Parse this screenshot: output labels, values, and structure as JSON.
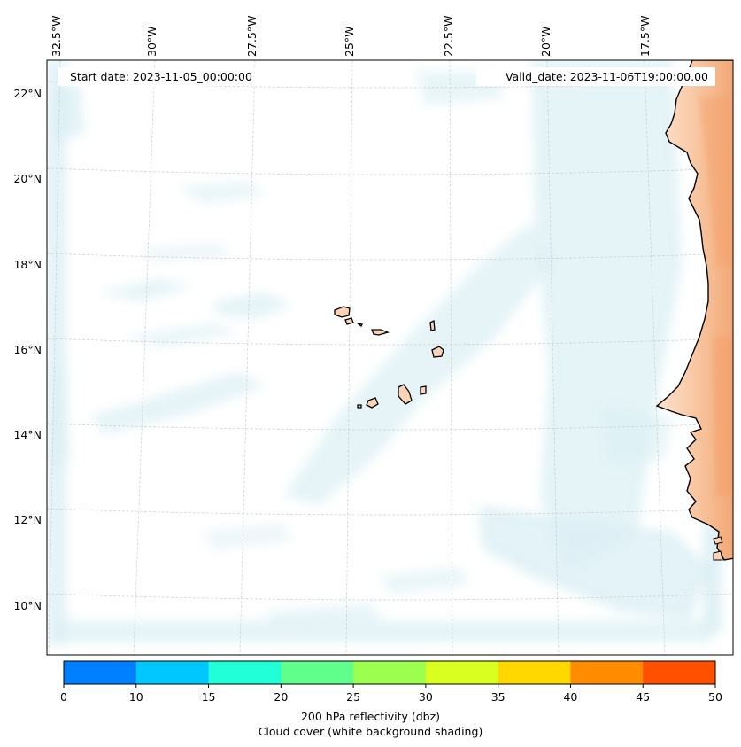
{
  "map": {
    "start_date_label": "Start date: 2023-11-05_00:00:00",
    "valid_date_label": "Valid_date: 2023-11-06T19:00:00.00",
    "lon_labels": [
      "32.5°W",
      "30°W",
      "27.5°W",
      "25°W",
      "22.5°W",
      "20°W",
      "17.5°W"
    ],
    "lat_labels": [
      "22°N",
      "20°N",
      "18°N",
      "16°N",
      "14°N",
      "12°N",
      "10°N"
    ]
  },
  "colorbar": {
    "ticks": [
      "0",
      "10",
      "15",
      "20",
      "25",
      "30",
      "35",
      "40",
      "45",
      "50"
    ],
    "colors": [
      "#0080ff",
      "#00c8ff",
      "#20ffd8",
      "#60ff8c",
      "#9cff50",
      "#d8ff20",
      "#ffd800",
      "#ff8c00",
      "#ff5000"
    ],
    "label_line1": "200 hPa reflectivity (dbz)",
    "label_line2": "Cloud cover (white background shading)"
  },
  "palette": {
    "cloud": "#d4ecf2",
    "land": "#fbd4b8",
    "land_edge": "#f3a06a",
    "grid": "#cccccc"
  }
}
